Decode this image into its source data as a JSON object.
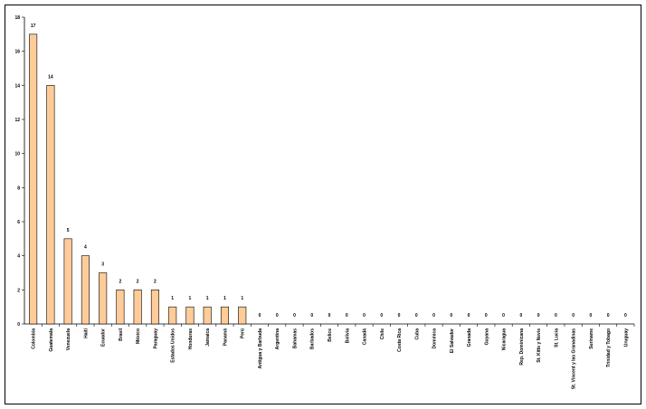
{
  "chart_data": {
    "type": "bar",
    "categories": [
      "Colombia",
      "Guatemala",
      "Venezuela",
      "Haití",
      "Ecuador",
      "Brasil",
      "México",
      "Paraguay",
      "Estados Unidos",
      "Honduras",
      "Jamaica",
      "Panamá",
      "Perú",
      "Antigua y Barbuda",
      "Argentina",
      "Bahamas",
      "Barbados",
      "Belice",
      "Bolivia",
      "Canadá",
      "Chile",
      "Costa Rica",
      "Cuba",
      "Dominica",
      "El Salvador",
      "Granada",
      "Guyana",
      "Nicaragua",
      "Rep. Dominicana",
      "St. Kitts y Nevis",
      "St. Lucia",
      "St. Vincent y las Granadinas",
      "Suriname",
      "Trinidad y Tobago",
      "Uruguay"
    ],
    "values": [
      17,
      14,
      5,
      4,
      3,
      2,
      2,
      2,
      1,
      1,
      1,
      1,
      1,
      0,
      0,
      0,
      0,
      0,
      0,
      0,
      0,
      0,
      0,
      0,
      0,
      0,
      0,
      0,
      0,
      0,
      0,
      0,
      0,
      0,
      0
    ],
    "color": "#ffcc99",
    "ylim": [
      0,
      18
    ],
    "yticks": [
      0,
      2,
      4,
      6,
      8,
      10,
      12,
      14,
      16,
      18
    ],
    "grid": false
  }
}
